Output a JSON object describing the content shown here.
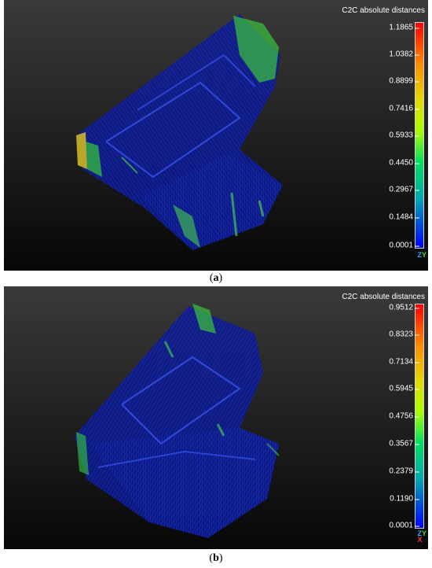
{
  "panels": [
    {
      "id": "a",
      "caption_open": "(",
      "caption_letter": "a",
      "caption_close": ")",
      "scale_title": "C2C absolute distances",
      "scale_values": [
        "1.1865",
        "1.0382",
        "0.8899",
        "0.7416",
        "0.5933",
        "0.4450",
        "0.2967",
        "0.1484",
        "0.0001"
      ],
      "axes": [
        "Z",
        "Y"
      ]
    },
    {
      "id": "b",
      "caption_open": "(",
      "caption_letter": "b",
      "caption_close": ")",
      "scale_title": "C2C absolute distances",
      "scale_values": [
        "0.9512",
        "0.8323",
        "0.7134",
        "0.5945",
        "0.4756",
        "0.3567",
        "0.2379",
        "0.1190",
        "0.0001"
      ],
      "axes": [
        "Z",
        "Y",
        "X"
      ]
    }
  ],
  "colors": {
    "scale_top": "#ff0000",
    "scale_mid": "#00e060",
    "scale_bottom": "#0000ff",
    "cloud_main": "#1a2fd6",
    "cloud_highlight": "#35c24a"
  }
}
